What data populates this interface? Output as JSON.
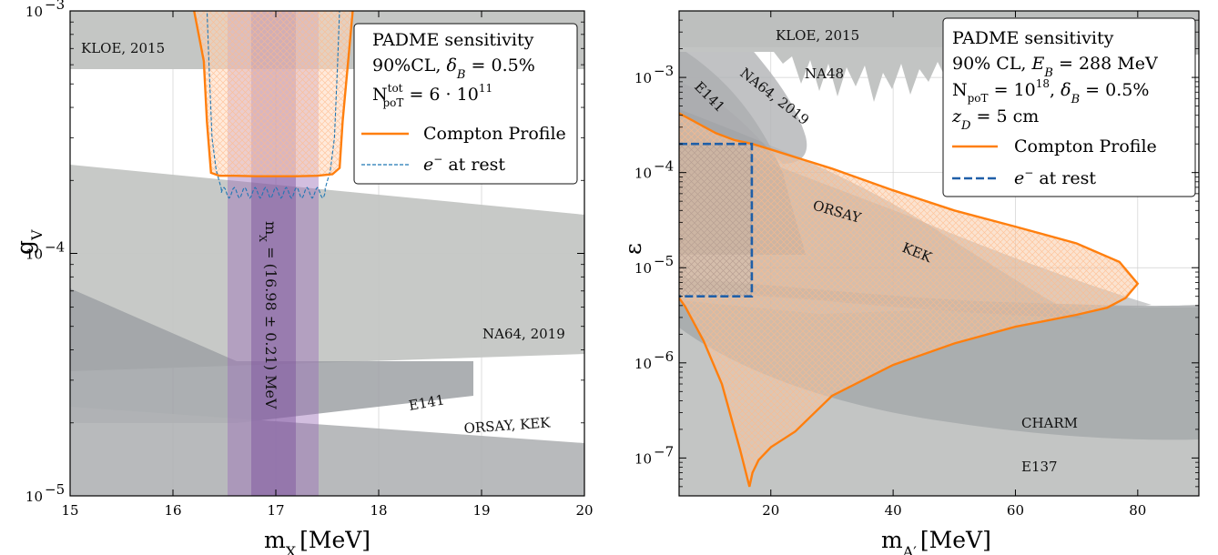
{
  "chart_data": [
    {
      "type": "area",
      "xlabel": "m",
      "xlabel_sub": "X",
      "xlabel_unit": "[MeV]",
      "ylabel": "g",
      "ylabel_sub": "V",
      "xlim": [
        15,
        20
      ],
      "ylim": [
        1e-05,
        0.001
      ],
      "yscale": "log",
      "x_ticks": [
        15,
        16,
        17,
        18,
        19,
        20
      ],
      "y_ticks": [
        {
          "value": 1e-05,
          "label": "10",
          "exp": "−5"
        },
        {
          "value": 0.0001,
          "label": "10",
          "exp": "−4"
        },
        {
          "value": 0.001,
          "label": "10",
          "exp": "−3"
        }
      ],
      "grid": true,
      "excluded_regions": [
        {
          "name": "KLOE, 2015",
          "x": [
            15,
            20
          ],
          "y_low": [
            0.00059,
            0.00059
          ],
          "y_high": [
            0.001,
            0.001
          ]
        },
        {
          "name": "NA64, 2019",
          "x": [
            15,
            20
          ],
          "y_low": [
            3.4e-05,
            3.7e-05
          ],
          "y_high": [
            0.000233,
            0.000149
          ]
        },
        {
          "name": "E141",
          "x": [
            15,
            17,
            18.9,
            18.9,
            17,
            15
          ],
          "y": [
            3.37e-05,
            3.37e-05,
            2.51e-05,
            3.15e-05,
            5.15e-05,
            6.65e-05
          ]
        },
        {
          "name": "ORSAY, KEK",
          "x": [
            15,
            20
          ],
          "y_low": [
            1e-05,
            1e-05
          ],
          "y_high": [
            2.26e-05,
            1.48e-05
          ]
        }
      ],
      "mass_band": {
        "label": "m",
        "label_sub": "X",
        "label_text": " = (16.98 ± 0.21) MeV",
        "center": 16.98,
        "inner": [
          16.77,
          17.19
        ],
        "outer": [
          16.56,
          17.4
        ]
      },
      "series": [
        {
          "name": "Compton Profile",
          "color": "#ff7f0e",
          "x": [
            16.2,
            16.3,
            16.33,
            16.37,
            16.45,
            16.6,
            16.8,
            17.0,
            17.2,
            17.4,
            17.55,
            17.62,
            17.65,
            17.7,
            17.75
          ],
          "y": [
            0.00103,
            0.00062,
            0.00035,
            0.000215,
            0.000209,
            0.000209,
            0.000208,
            0.000208,
            0.000208,
            0.000209,
            0.000212,
            0.000225,
            0.00035,
            0.0006,
            0.00103
          ]
        },
        {
          "name": "e⁻ at rest",
          "color": "#1f77b4",
          "x": [
            16.33,
            16.35,
            16.38,
            16.42,
            16.47,
            16.47,
            17.48,
            17.48,
            17.53,
            17.57,
            17.6,
            17.62
          ],
          "y": [
            0.00103,
            0.0006,
            0.0003,
            0.00022,
            0.000185,
            0.000178,
            0.000178,
            0.000185,
            0.00022,
            0.0003,
            0.0006,
            0.00103
          ]
        }
      ],
      "legend": {
        "position": "top-right",
        "title_lines": [
          "PADME sensitivity",
          "90%CL, δB = 0.5%",
          "NtotpoT = 6 · 10^11"
        ],
        "entries": [
          "Compton Profile",
          "e⁻ at rest"
        ]
      }
    },
    {
      "type": "area",
      "xlabel": "m",
      "xlabel_sub": "A′",
      "xlabel_unit": "[MeV]",
      "ylabel": "ε",
      "xlim": [
        5,
        90
      ],
      "ylim": [
        4e-08,
        0.005
      ],
      "yscale": "log",
      "x_ticks": [
        20,
        40,
        60,
        80
      ],
      "y_ticks": [
        {
          "value": 1e-07,
          "label": "10",
          "exp": "−7"
        },
        {
          "value": 1e-06,
          "label": "10",
          "exp": "−6"
        },
        {
          "value": 1e-05,
          "label": "10",
          "exp": "−5"
        },
        {
          "value": 0.0001,
          "label": "10",
          "exp": "−4"
        },
        {
          "value": 0.001,
          "label": "10",
          "exp": "−3"
        }
      ],
      "grid": true,
      "excluded_regions": [
        {
          "name": "KLOE, 2015"
        },
        {
          "name": "NA48"
        },
        {
          "name": "E141"
        },
        {
          "name": "NA64, 2019"
        },
        {
          "name": "ORSAY"
        },
        {
          "name": "KEK"
        },
        {
          "name": "CHARM"
        },
        {
          "name": "E137"
        }
      ],
      "series": [
        {
          "name": "Compton Profile",
          "color": "#ff7f0e",
          "x": [
            5,
            8,
            11,
            14,
            17,
            20,
            30,
            40,
            50,
            60,
            70,
            77,
            80,
            78,
            75,
            70,
            60,
            50,
            40,
            30,
            24,
            20,
            18,
            17,
            16.5,
            15,
            12,
            9,
            6,
            5
          ],
          "y": [
            0.00042,
            0.00033,
            0.00026,
            0.00022,
            0.0002,
            0.000175,
            0.00011,
            6.5e-05,
            4e-05,
            2.7e-05,
            1.8e-05,
            1.15e-05,
            6.8e-06,
            4.8e-06,
            3.8e-06,
            3.2e-06,
            2.4e-06,
            1.6e-06,
            9.5e-07,
            4.5e-07,
            1.9e-07,
            1.3e-07,
            9.5e-08,
            7e-08,
            5e-08,
            1.2e-07,
            6e-07,
            1.7e-06,
            3.9e-06,
            4.8e-06
          ]
        },
        {
          "name": "e⁻ at rest",
          "color": "#1f5fa8",
          "x": [
            5,
            16.9,
            16.9,
            5
          ],
          "y": [
            0.0002,
            0.0002,
            5e-06,
            5e-06
          ]
        }
      ],
      "legend": {
        "position": "top-right",
        "title_lines": [
          "PADME sensitivity",
          "90% CL, EB = 288 MeV",
          "NpoT = 10^18, δB = 0.5%",
          "zD = 5 cm"
        ],
        "entries": [
          "Compton Profile",
          "e⁻ at rest"
        ]
      }
    }
  ],
  "left_text": {
    "x_unit": "[MeV]",
    "x_sub": "X",
    "y_main": "g",
    "y_sub": "V",
    "kloe": "KLOE, 2015",
    "na64": "NA64, 2019",
    "e141": "E141",
    "orsay_kek": "ORSAY, KEK",
    "band_main": "m",
    "band_sub": "X",
    "band_rest": " = (16.98 ± 0.21) MeV",
    "legend_l1": "PADME sensitivity",
    "legend_l2_a": "90%CL, ",
    "legend_l2_b": "δ",
    "legend_l2_c": "B",
    "legend_l2_d": " = 0.5%",
    "legend_l3_a": "N",
    "legend_l3_sup": "tot",
    "legend_l3_sub": "poT",
    "legend_l3_b": " = 6 · 10",
    "legend_l3_exp": "11",
    "legend_e1": "Compton Profile",
    "legend_e2_a": "e",
    "legend_e2_sup": "−",
    "legend_e2_b": " at rest"
  },
  "right_text": {
    "x_main": "m",
    "x_sub": "A′",
    "x_unit": "[MeV]",
    "y_main": "ε",
    "kloe": "KLOE, 2015",
    "na48": "NA48",
    "e141": "E141",
    "na64": "NA64, 2019",
    "orsay": "ORSAY",
    "kek": "KEK",
    "charm": "CHARM",
    "e137": "E137",
    "legend_l1": "PADME sensitivity",
    "legend_l2_a": "90% CL, ",
    "legend_l2_b": "E",
    "legend_l2_c": "B",
    "legend_l2_d": " = 288 MeV",
    "legend_l3_a": "N",
    "legend_l3_sub": "poT",
    "legend_l3_b": " = 10",
    "legend_l3_exp": "18",
    "legend_l3_c": ", ",
    "legend_l3_d": "δ",
    "legend_l3_e": "B",
    "legend_l3_f": " = 0.5%",
    "legend_l4_a": "z",
    "legend_l4_b": "D",
    "legend_l4_c": " = 5 cm",
    "legend_e1": "Compton Profile",
    "legend_e2_a": "e",
    "legend_e2_sup": "−",
    "legend_e2_b": " at rest"
  }
}
